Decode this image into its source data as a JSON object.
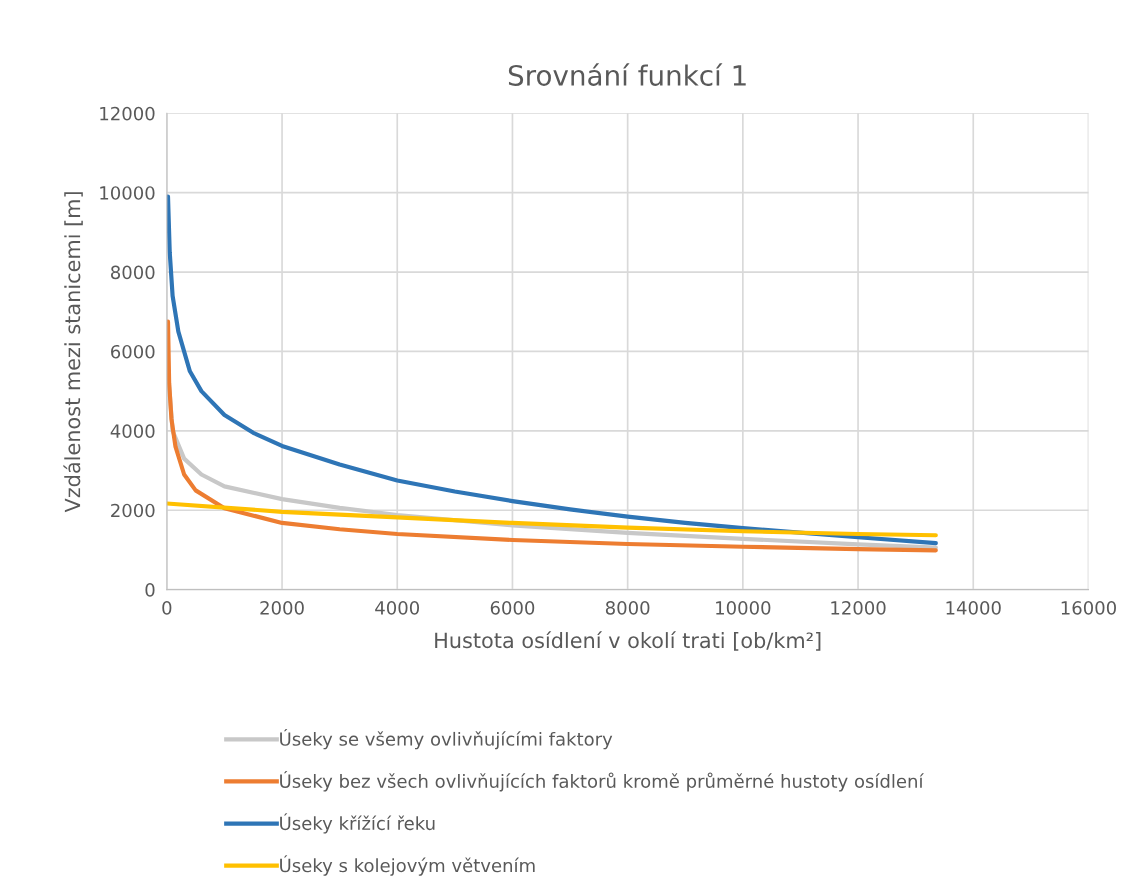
{
  "chart_data": {
    "type": "line",
    "title": "Srovnání funkcí 1",
    "xlabel": "Hustota osídlení v okolí trati [ob/km²]",
    "ylabel": "Vzdálenost mezi stanicemi [m]",
    "xlim": [
      0,
      16000
    ],
    "xticks": [
      0,
      2000,
      4000,
      6000,
      8000,
      10000,
      12000,
      14000,
      16000
    ],
    "ylim": [
      0,
      12000
    ],
    "yticks": [
      0,
      2000,
      4000,
      6000,
      8000,
      10000,
      12000
    ],
    "grid": true,
    "legend": "bottom",
    "marker": "none",
    "line_style": "solid",
    "series": [
      {
        "name": "Úseky se všemy ovlivňujícími faktory",
        "color": "#c8c8c8",
        "x": [
          20,
          100,
          300,
          600,
          1000,
          2000,
          3000,
          4000,
          6000,
          8000,
          10000,
          12000,
          13350
        ],
        "values": [
          5500,
          4000,
          3300,
          2900,
          2600,
          2280,
          2060,
          1880,
          1620,
          1430,
          1280,
          1140,
          1060
        ]
      },
      {
        "name": "Úseky bez všech ovlivňujících faktorů kromě průměrné hustoty osídlení",
        "color": "#ed7d31",
        "x": [
          20,
          40,
          80,
          150,
          300,
          500,
          1000,
          2000,
          3000,
          4000,
          6000,
          8000,
          10000,
          12000,
          13350
        ],
        "values": [
          6750,
          5200,
          4300,
          3600,
          2900,
          2500,
          2050,
          1680,
          1520,
          1400,
          1250,
          1150,
          1080,
          1020,
          990
        ]
      },
      {
        "name": "Úseky křížící řeku",
        "color": "#2e75b6",
        "x": [
          20,
          50,
          100,
          200,
          400,
          600,
          1000,
          1500,
          2000,
          3000,
          4000,
          5000,
          6000,
          7000,
          8000,
          9000,
          10000,
          12000,
          13350
        ],
        "values": [
          9900,
          8500,
          7400,
          6500,
          5500,
          5000,
          4400,
          3950,
          3620,
          3150,
          2750,
          2470,
          2230,
          2020,
          1840,
          1680,
          1550,
          1320,
          1170
        ]
      },
      {
        "name": "Úseky s kolejovým větvením",
        "color": "#ffc000",
        "x": [
          0,
          2000,
          4000,
          6000,
          8000,
          10000,
          12000,
          13350
        ],
        "values": [
          2170,
          1960,
          1820,
          1680,
          1560,
          1470,
          1400,
          1370
        ]
      }
    ]
  }
}
